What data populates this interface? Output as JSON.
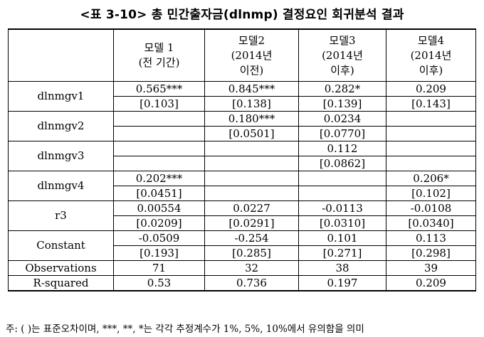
{
  "title": "<표 3-10> 총 민간출자금(dlnmp) 결정요인 회귀분석 결과",
  "columns": [
    {
      "line1": "",
      "line2": "",
      "line3": ""
    },
    {
      "line1": "모델 1",
      "line2": "(전 기간)",
      "line3": ""
    },
    {
      "line1": "모델2",
      "line2": "(2014년",
      "line3": "이전)"
    },
    {
      "line1": "모델3",
      "line2": "(2014년",
      "line3": "이후)"
    },
    {
      "line1": "모델4",
      "line2": "(2014년",
      "line3": "이후)"
    }
  ],
  "rows": [
    {
      "name": "dlnmgv1",
      "est": [
        "0.565***",
        "0.845***",
        "0.282*",
        "0.209"
      ],
      "se": [
        "[0.103]",
        "[0.138]",
        "[0.139]",
        "[0.143]"
      ]
    },
    {
      "name": "dlnmgv2",
      "est": [
        "",
        "0.180***",
        "0.0234",
        ""
      ],
      "se": [
        "",
        "[0.0501]",
        "[0.0770]",
        ""
      ]
    },
    {
      "name": "dlnmgv3",
      "est": [
        "",
        "",
        "0.112",
        ""
      ],
      "se": [
        "",
        "",
        "[0.0862]",
        ""
      ]
    },
    {
      "name": "dlnmgv4",
      "est": [
        "0.202***",
        "",
        "",
        "0.206*"
      ],
      "se": [
        "[0.0451]",
        "",
        "",
        "[0.102]"
      ]
    },
    {
      "name": "r3",
      "est": [
        "0.00554",
        "0.0227",
        "-0.0113",
        "-0.0108"
      ],
      "se": [
        "[0.0209]",
        "[0.0291]",
        "[0.0310]",
        "[0.0340]"
      ]
    },
    {
      "name": "Constant",
      "est": [
        "-0.0509",
        "-0.254",
        "0.101",
        "0.113"
      ],
      "se": [
        "[0.193]",
        "[0.285]",
        "[0.271]",
        "[0.298]"
      ]
    }
  ],
  "observations": {
    "name": "Observations",
    "values": [
      "71",
      "32",
      "38",
      "39"
    ]
  },
  "rsquared": {
    "name": "R-squared",
    "values": [
      "0.53",
      "0.736",
      "0.197",
      "0.209"
    ]
  },
  "note": "주: ( )는 표준오차이며, ***, **, *는 각각 추정계수가 1%, 5%, 10%에서 유의함을 의미"
}
